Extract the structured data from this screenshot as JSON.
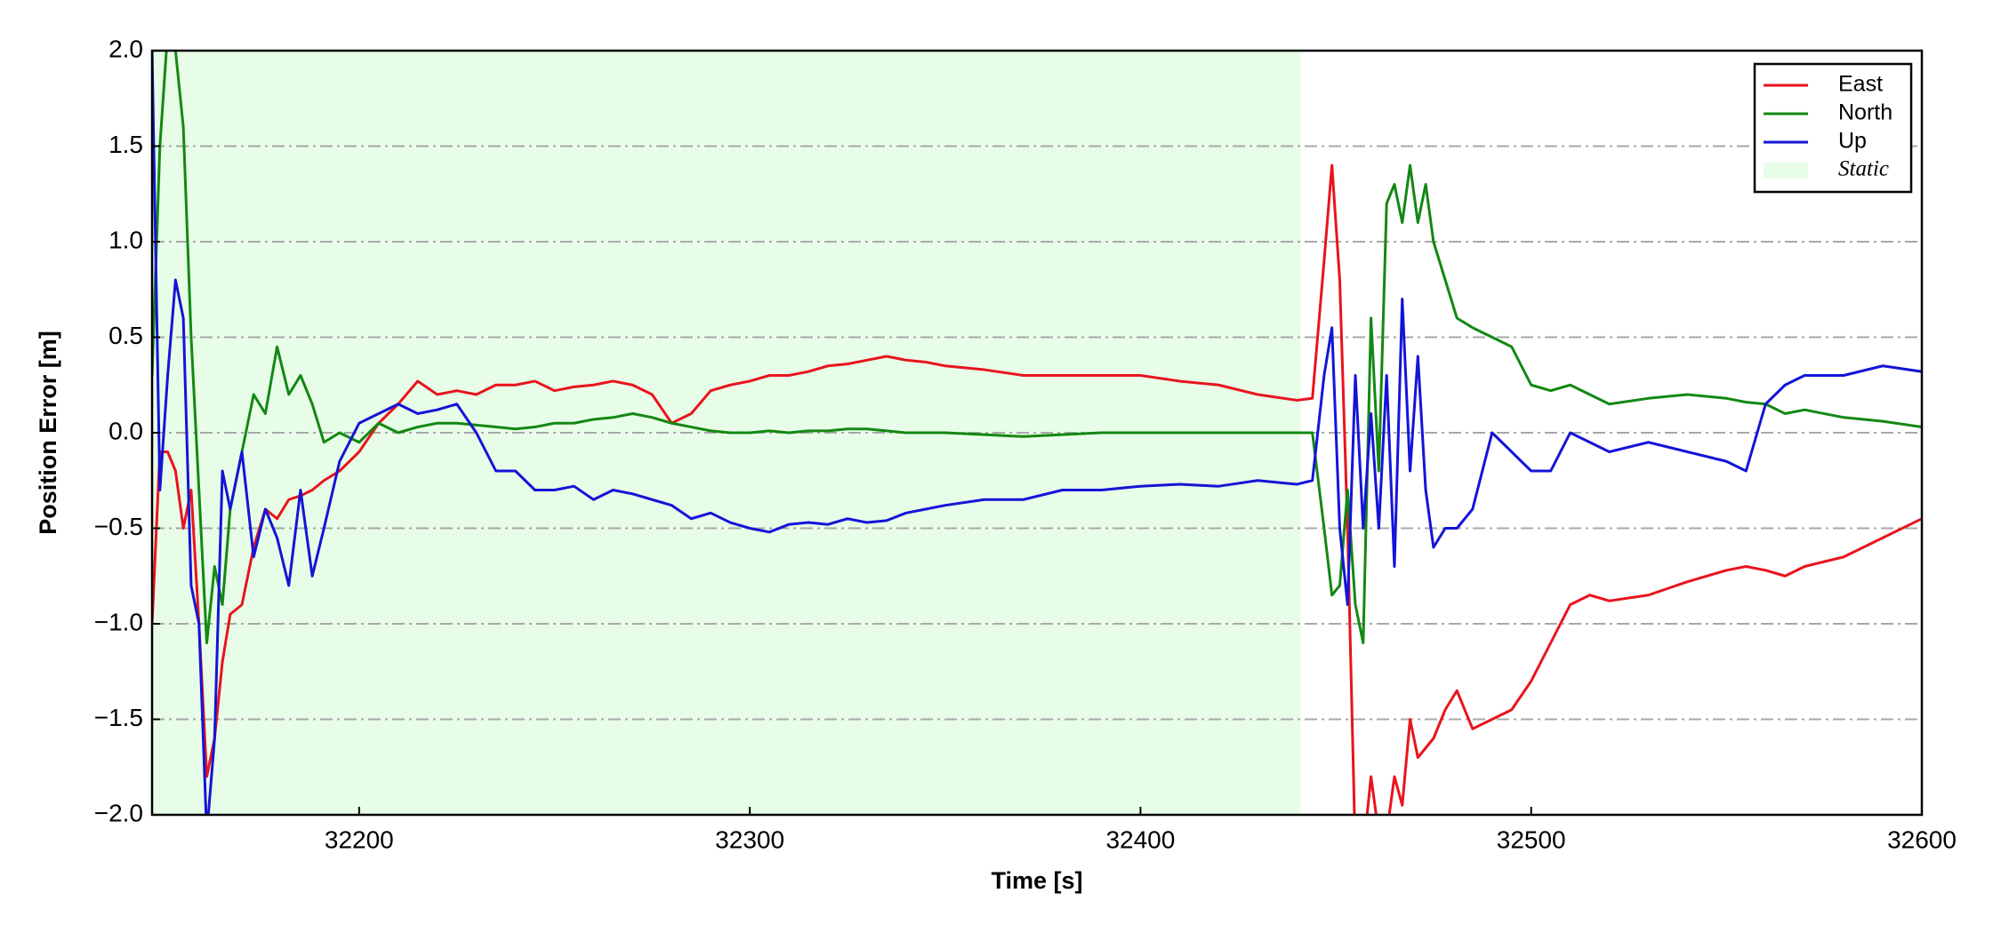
{
  "chart_data": {
    "type": "line",
    "xlabel": "Time [s]",
    "ylabel": "Position Error [m]",
    "xlim": [
      32147,
      32600
    ],
    "ylim": [
      -2,
      2
    ],
    "xticks": [
      32200,
      32300,
      32400,
      32500,
      32600
    ],
    "yticks": [
      {
        "value": -2,
        "label": "−2.0"
      },
      {
        "value": -1.5,
        "label": "−1.5"
      },
      {
        "value": -1,
        "label": "−1.0"
      },
      {
        "value": -0.5,
        "label": "−0.5"
      },
      {
        "value": 0,
        "label": "0.0"
      },
      {
        "value": 0.5,
        "label": "0.5"
      },
      {
        "value": 1,
        "label": "1.0"
      },
      {
        "value": 1.5,
        "label": "1.5"
      },
      {
        "value": 2,
        "label": "2.0"
      }
    ],
    "grid": true,
    "legend": "upper right",
    "shade": {
      "name": "Static",
      "start": 32147,
      "end": 32441,
      "color": "#e8fde8"
    },
    "x": [
      32147,
      32149,
      32151,
      32153,
      32155,
      32157,
      32159,
      32161,
      32163,
      32165,
      32167,
      32170,
      32173,
      32176,
      32179,
      32182,
      32185,
      32188,
      32191,
      32195,
      32200,
      32205,
      32210,
      32215,
      32220,
      32225,
      32230,
      32235,
      32240,
      32245,
      32250,
      32255,
      32260,
      32265,
      32270,
      32275,
      32280,
      32285,
      32290,
      32295,
      32300,
      32305,
      32310,
      32315,
      32320,
      32325,
      32330,
      32335,
      32340,
      32345,
      32350,
      32360,
      32370,
      32380,
      32390,
      32400,
      32410,
      32420,
      32430,
      32440,
      32444,
      32447,
      32449,
      32451,
      32453,
      32455,
      32457,
      32459,
      32461,
      32463,
      32465,
      32467,
      32469,
      32471,
      32473,
      32475,
      32478,
      32481,
      32485,
      32490,
      32495,
      32500,
      32505,
      32510,
      32515,
      32520,
      32530,
      32540,
      32550,
      32555,
      32560,
      32565,
      32570,
      32580,
      32590,
      32600
    ],
    "series": [
      {
        "name": "East",
        "color": "#e8141c",
        "values": [
          -1.0,
          -0.1,
          -0.1,
          -0.2,
          -0.5,
          -0.3,
          -1.0,
          -1.8,
          -1.6,
          -1.2,
          -0.95,
          -0.9,
          -0.6,
          -0.4,
          -0.45,
          -0.35,
          -0.33,
          -0.3,
          -0.25,
          -0.2,
          -0.1,
          0.05,
          0.15,
          0.27,
          0.2,
          0.22,
          0.2,
          0.25,
          0.25,
          0.27,
          0.22,
          0.24,
          0.25,
          0.27,
          0.25,
          0.2,
          0.05,
          0.1,
          0.22,
          0.25,
          0.27,
          0.3,
          0.3,
          0.32,
          0.35,
          0.36,
          0.38,
          0.4,
          0.38,
          0.37,
          0.35,
          0.33,
          0.3,
          0.3,
          0.3,
          0.3,
          0.27,
          0.25,
          0.2,
          0.17,
          0.18,
          0.9,
          1.4,
          0.8,
          -0.5,
          -2.2,
          -2.2,
          -1.8,
          -2.1,
          -2.1,
          -1.8,
          -1.95,
          -1.5,
          -1.7,
          -1.65,
          -1.6,
          -1.45,
          -1.35,
          -1.55,
          -1.5,
          -1.45,
          -1.3,
          -1.1,
          -0.9,
          -0.85,
          -0.88,
          -0.85,
          -0.78,
          -0.72,
          -0.7,
          -0.72,
          -0.75,
          -0.7,
          -0.65,
          -0.55,
          -0.45
        ]
      },
      {
        "name": "North",
        "color": "#138813",
        "values": [
          0.3,
          1.5,
          2.1,
          2.0,
          1.6,
          0.5,
          -0.3,
          -1.1,
          -0.7,
          -0.9,
          -0.4,
          -0.1,
          0.2,
          0.1,
          0.45,
          0.2,
          0.3,
          0.15,
          -0.05,
          0.0,
          -0.05,
          0.05,
          0.0,
          0.03,
          0.05,
          0.05,
          0.04,
          0.03,
          0.02,
          0.03,
          0.05,
          0.05,
          0.07,
          0.08,
          0.1,
          0.08,
          0.05,
          0.03,
          0.01,
          0.0,
          0.0,
          0.01,
          0.0,
          0.01,
          0.01,
          0.02,
          0.02,
          0.01,
          0.0,
          0.0,
          0.0,
          -0.01,
          -0.02,
          -0.01,
          0.0,
          0.0,
          0.0,
          0.0,
          0.0,
          0.0,
          0.0,
          -0.5,
          -0.85,
          -0.8,
          -0.3,
          -0.9,
          -1.1,
          0.6,
          -0.2,
          1.2,
          1.3,
          1.1,
          1.4,
          1.1,
          1.3,
          1.0,
          0.8,
          0.6,
          0.55,
          0.5,
          0.45,
          0.25,
          0.22,
          0.25,
          0.2,
          0.15,
          0.18,
          0.2,
          0.18,
          0.16,
          0.15,
          0.1,
          0.12,
          0.08,
          0.06,
          0.03
        ]
      },
      {
        "name": "Up",
        "color": "#1414d8",
        "values": [
          2.0,
          -0.3,
          0.3,
          0.8,
          0.6,
          -0.8,
          -1.0,
          -2.1,
          -1.6,
          -0.2,
          -0.4,
          -0.1,
          -0.65,
          -0.4,
          -0.55,
          -0.8,
          -0.3,
          -0.75,
          -0.5,
          -0.15,
          0.05,
          0.1,
          0.15,
          0.1,
          0.12,
          0.15,
          0.0,
          -0.2,
          -0.2,
          -0.3,
          -0.3,
          -0.28,
          -0.35,
          -0.3,
          -0.32,
          -0.35,
          -0.38,
          -0.45,
          -0.42,
          -0.47,
          -0.5,
          -0.52,
          -0.48,
          -0.47,
          -0.48,
          -0.45,
          -0.47,
          -0.46,
          -0.42,
          -0.4,
          -0.38,
          -0.35,
          -0.35,
          -0.3,
          -0.3,
          -0.28,
          -0.27,
          -0.28,
          -0.25,
          -0.27,
          -0.25,
          0.3,
          0.55,
          -0.5,
          -0.9,
          0.3,
          -0.5,
          0.1,
          -0.5,
          0.3,
          -0.7,
          0.7,
          -0.2,
          0.4,
          -0.3,
          -0.6,
          -0.5,
          -0.5,
          -0.4,
          0.0,
          -0.1,
          -0.2,
          -0.2,
          0.0,
          -0.05,
          -0.1,
          -0.05,
          -0.1,
          -0.15,
          -0.2,
          0.15,
          0.25,
          0.3,
          0.3,
          0.35,
          0.32
        ]
      }
    ]
  }
}
